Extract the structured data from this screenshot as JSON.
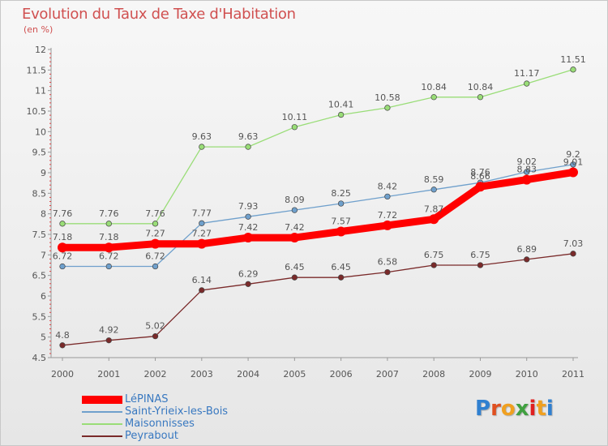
{
  "title": "Evolution du Taux de Taxe d'Habitation",
  "unit": "(en %)",
  "logo": {
    "text": "Proxiti",
    "letter_colors": [
      "#3080d0",
      "#e05020",
      "#f0a020",
      "#40a040",
      "#e02020",
      "#f0a020",
      "#3080d0"
    ]
  },
  "chart_data": {
    "type": "line",
    "x": [
      "2000",
      "2001",
      "2002",
      "2003",
      "2004",
      "2005",
      "2006",
      "2007",
      "2008",
      "2009",
      "2010",
      "2011"
    ],
    "ylim": [
      4.5,
      12
    ],
    "yticks": [
      "4.5",
      "5",
      "5.5",
      "6",
      "6.5",
      "7",
      "7.5",
      "8",
      "8.5",
      "9",
      "9.5",
      "10",
      "10.5",
      "11",
      "11.5",
      "12"
    ],
    "grid": false,
    "legend_position": "bottom-left",
    "series": [
      {
        "name": "LéPINAS",
        "color": "#ff0000",
        "emphasis": true,
        "values": [
          7.18,
          7.18,
          7.27,
          7.27,
          7.42,
          7.42,
          7.57,
          7.72,
          7.87,
          8.66,
          8.83,
          9.01
        ],
        "labels": [
          "7.18",
          "7.18",
          "7.27",
          "7.27",
          "7.42",
          "7.42",
          "7.57",
          "7.72",
          "7.87",
          "8.66",
          "8.83",
          "9.01"
        ]
      },
      {
        "name": "Saint-Yrieix-les-Bois",
        "color": "#6fa0cc",
        "emphasis": false,
        "values": [
          6.72,
          6.72,
          6.72,
          7.77,
          7.93,
          8.09,
          8.25,
          8.42,
          8.59,
          8.76,
          9.02,
          9.2
        ],
        "labels": [
          "6.72",
          "6.72",
          "6.72",
          "7.77",
          "7.93",
          "8.09",
          "8.25",
          "8.42",
          "8.59",
          "8.76",
          "9.02",
          "9.2"
        ]
      },
      {
        "name": "Maisonnisses",
        "color": "#99dd77",
        "emphasis": false,
        "values": [
          7.76,
          7.76,
          7.76,
          9.63,
          9.63,
          10.11,
          10.41,
          10.58,
          10.84,
          10.84,
          11.17,
          11.51
        ],
        "labels": [
          "7.76",
          "7.76",
          "7.76",
          "9.63",
          "9.63",
          "10.11",
          "10.41",
          "10.58",
          "10.84",
          "10.84",
          "11.17",
          "11.51"
        ]
      },
      {
        "name": "Peyrabout",
        "color": "#7a2a2a",
        "emphasis": false,
        "values": [
          4.8,
          4.92,
          5.02,
          6.14,
          6.29,
          6.45,
          6.45,
          6.58,
          6.75,
          6.75,
          6.89,
          7.03
        ],
        "labels": [
          "4.8",
          "4.92",
          "5.02",
          "6.14",
          "6.29",
          "6.45",
          "6.45",
          "6.58",
          "6.75",
          "6.75",
          "6.89",
          "7.03"
        ]
      }
    ]
  }
}
